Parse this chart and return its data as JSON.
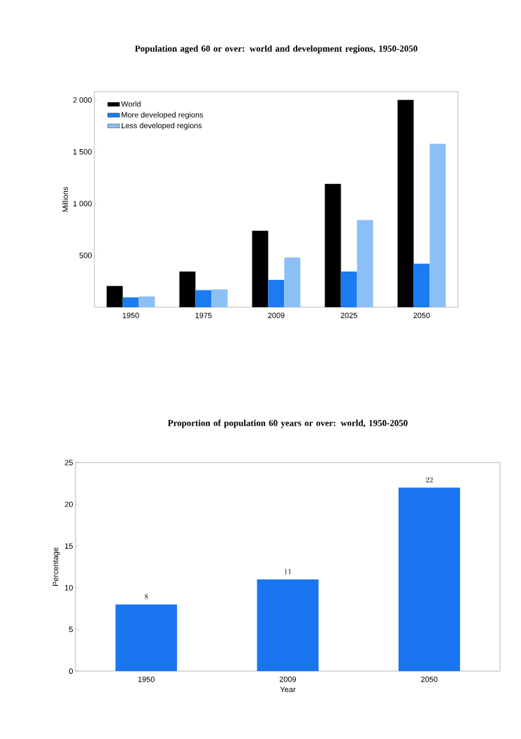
{
  "chart_data": [
    {
      "type": "bar",
      "title": "Population aged 60 or over: world and development regions, 1950-2050",
      "ylabel": "Millions",
      "categories": [
        "1950",
        "1975",
        "2009",
        "2025",
        "2050"
      ],
      "ylim": [
        0,
        2080
      ],
      "yticks": [
        {
          "value": 500,
          "label": "500"
        },
        {
          "value": 1000,
          "label": "1 000"
        },
        {
          "value": 1500,
          "label": "1 500"
        },
        {
          "value": 2000,
          "label": "2 000"
        }
      ],
      "legend": "top left",
      "series": [
        {
          "name": "World",
          "color": "#000000",
          "values": [
            205,
            345,
            737,
            1190,
            2000
          ]
        },
        {
          "name": "More developed regions",
          "color": "#1a7cf0",
          "values": [
            95,
            165,
            264,
            345,
            420
          ]
        },
        {
          "name": "Less developed regions",
          "color": "#8cbff5",
          "values": [
            104,
            172,
            480,
            840,
            1576
          ]
        }
      ]
    },
    {
      "type": "bar",
      "title": "Proportion of population 60 years or over: world, 1950-2050",
      "xlabel": "Year",
      "ylabel": "Percentage",
      "categories": [
        "1950",
        "2009",
        "2050"
      ],
      "ylim": [
        0,
        25
      ],
      "yticks": [
        0,
        5,
        10,
        15,
        20,
        25
      ],
      "data_labels": true,
      "legend": false,
      "series": [
        {
          "color": "#1a75f0",
          "values": [
            8,
            11,
            22
          ]
        }
      ]
    }
  ]
}
